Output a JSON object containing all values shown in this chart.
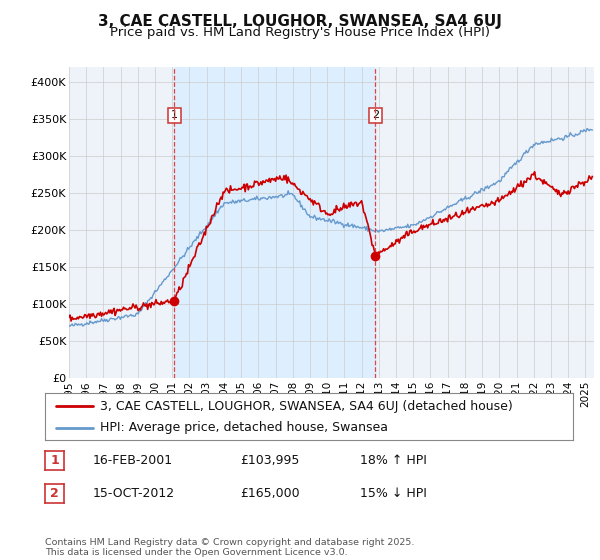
{
  "title": "3, CAE CASTELL, LOUGHOR, SWANSEA, SA4 6UJ",
  "subtitle": "Price paid vs. HM Land Registry's House Price Index (HPI)",
  "background_color": "#ffffff",
  "plot_bg_color": "#eef3fa",
  "grid_color": "#cccccc",
  "ylim": [
    0,
    420000
  ],
  "yticks": [
    0,
    50000,
    100000,
    150000,
    200000,
    250000,
    300000,
    350000,
    400000
  ],
  "ytick_labels": [
    "£0",
    "£50K",
    "£100K",
    "£150K",
    "£200K",
    "£250K",
    "£300K",
    "£350K",
    "£400K"
  ],
  "xmin_year": 1995.0,
  "xmax_year": 2025.5,
  "xtick_years": [
    1995,
    1996,
    1997,
    1998,
    1999,
    2000,
    2001,
    2002,
    2003,
    2004,
    2005,
    2006,
    2007,
    2008,
    2009,
    2010,
    2011,
    2012,
    2013,
    2014,
    2015,
    2016,
    2017,
    2018,
    2019,
    2020,
    2021,
    2022,
    2023,
    2024,
    2025
  ],
  "vline1_year": 2001.12,
  "vline2_year": 2012.79,
  "marker1_x": 2001.12,
  "marker1_y": 103995,
  "marker2_x": 2012.79,
  "marker2_y": 165000,
  "red_line_color": "#cc0000",
  "blue_line_color": "#6699cc",
  "blue_fill_color": "#ddeeff",
  "legend_label_red": "3, CAE CASTELL, LOUGHOR, SWANSEA, SA4 6UJ (detached house)",
  "legend_label_blue": "HPI: Average price, detached house, Swansea",
  "table_rows": [
    {
      "num": "1",
      "date": "16-FEB-2001",
      "price": "£103,995",
      "hpi": "18% ↑ HPI"
    },
    {
      "num": "2",
      "date": "15-OCT-2012",
      "price": "£165,000",
      "hpi": "15% ↓ HPI"
    }
  ],
  "footer": "Contains HM Land Registry data © Crown copyright and database right 2025.\nThis data is licensed under the Open Government Licence v3.0.",
  "title_fontsize": 11,
  "subtitle_fontsize": 9.5,
  "tick_fontsize": 8,
  "legend_fontsize": 9
}
